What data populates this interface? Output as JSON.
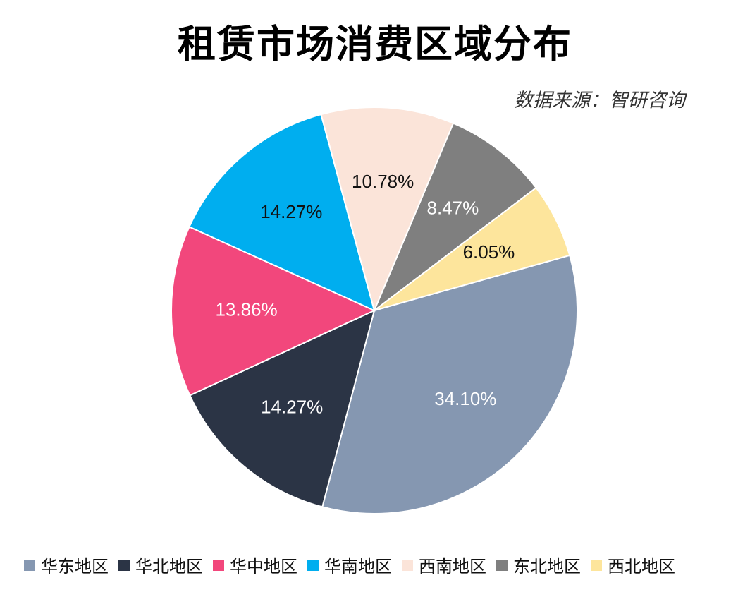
{
  "chart_data": {
    "type": "pie",
    "title": "租赁市场消费区域分布",
    "source": "数据来源：智研咨询",
    "unit": "%",
    "slices": [
      {
        "name": "华东地区",
        "value": 34.1,
        "label": "34.10%",
        "color": "#8597b1",
        "label_color": "#ffffff"
      },
      {
        "name": "华北地区",
        "value": 14.27,
        "label": "14.27%",
        "color": "#2b3445",
        "label_color": "#ffffff"
      },
      {
        "name": "华中地区",
        "value": 13.86,
        "label": "13.86%",
        "color": "#f2477c",
        "label_color": "#ffffff"
      },
      {
        "name": "华南地区",
        "value": 14.27,
        "label": "14.27%",
        "color": "#00aeef",
        "label_color": "#111111"
      },
      {
        "name": "西南地区",
        "value": 10.78,
        "label": "10.78%",
        "color": "#fbe4d9",
        "label_color": "#111111"
      },
      {
        "name": "东北地区",
        "value": 8.47,
        "label": "8.47%",
        "color": "#7f7f7f",
        "label_color": "#ffffff"
      },
      {
        "name": "西北地区",
        "value": 6.05,
        "label": "6.05%",
        "color": "#fde59c",
        "label_color": "#111111"
      }
    ],
    "legend_position": "bottom"
  }
}
